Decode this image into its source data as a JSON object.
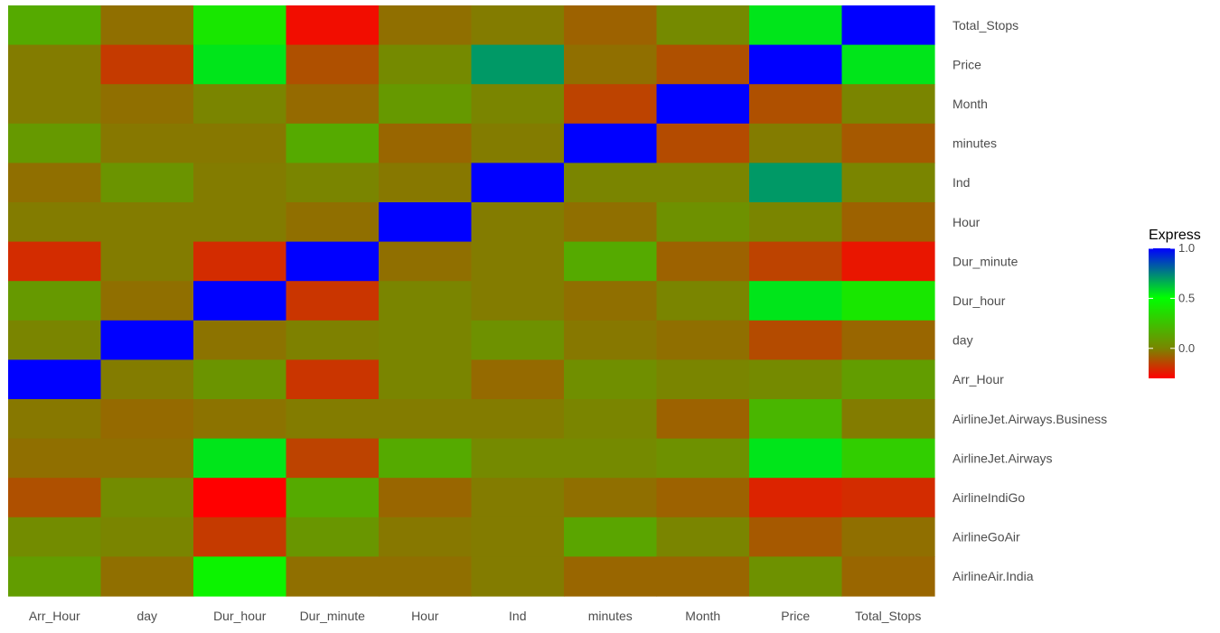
{
  "chart_data": {
    "type": "heatmap",
    "x_labels": [
      "Arr_Hour",
      "day",
      "Dur_hour",
      "Dur_minute",
      "Hour",
      "Ind",
      "minutes",
      "Month",
      "Price",
      "Total_Stops"
    ],
    "y_labels_top_to_bottom": [
      "Total_Stops",
      "Price",
      "Month",
      "minutes",
      "Ind",
      "Hour",
      "Dur_minute",
      "Dur_hour",
      "day",
      "Arr_Hour",
      "AirlineJet.Airways.Business",
      "AirlineJet.Airways",
      "AirlineIndiGo",
      "AirlineGoAir",
      "AirlineAir.India"
    ],
    "values": [
      [
        0.15,
        -0.05,
        0.4,
        -0.27,
        -0.05,
        -0.02,
        -0.08,
        0.02,
        0.55,
        1.0
      ],
      [
        -0.02,
        -0.17,
        0.55,
        -0.12,
        0.02,
        0.7,
        -0.05,
        -0.12,
        1.0,
        0.55
      ],
      [
        -0.02,
        -0.05,
        0.0,
        -0.06,
        0.08,
        0.0,
        -0.15,
        1.0,
        -0.12,
        0.0
      ],
      [
        0.08,
        -0.03,
        -0.03,
        0.15,
        -0.07,
        -0.02,
        1.0,
        -0.13,
        -0.02,
        -0.1
      ],
      [
        -0.05,
        0.06,
        -0.02,
        0.0,
        -0.03,
        1.0,
        0.0,
        0.0,
        0.7,
        0.0
      ],
      [
        -0.02,
        -0.02,
        -0.02,
        -0.05,
        1.0,
        -0.02,
        -0.05,
        0.05,
        0.0,
        -0.08
      ],
      [
        -0.2,
        -0.02,
        -0.2,
        1.0,
        -0.05,
        -0.02,
        0.15,
        -0.08,
        -0.15,
        -0.25
      ],
      [
        0.08,
        -0.05,
        1.0,
        -0.18,
        0.0,
        -0.02,
        -0.05,
        0.0,
        0.55,
        0.4
      ],
      [
        0.0,
        1.0,
        -0.04,
        -0.01,
        0.0,
        0.05,
        -0.03,
        -0.05,
        -0.13,
        -0.07
      ],
      [
        1.0,
        -0.02,
        0.06,
        -0.18,
        0.0,
        -0.06,
        0.04,
        0.0,
        0.02,
        0.1
      ],
      [
        -0.03,
        -0.06,
        -0.04,
        -0.02,
        -0.02,
        -0.02,
        0.0,
        -0.08,
        0.2,
        -0.02
      ],
      [
        -0.05,
        -0.05,
        0.55,
        -0.15,
        0.15,
        0.02,
        0.02,
        0.05,
        0.55,
        0.3
      ],
      [
        -0.12,
        0.03,
        -0.3,
        0.15,
        -0.07,
        -0.02,
        -0.05,
        -0.08,
        -0.22,
        -0.2
      ],
      [
        0.03,
        0.0,
        -0.17,
        0.07,
        -0.03,
        -0.02,
        0.13,
        0.0,
        -0.1,
        -0.05
      ],
      [
        0.1,
        -0.05,
        0.45,
        -0.05,
        -0.05,
        -0.02,
        -0.07,
        -0.07,
        0.05,
        -0.07
      ]
    ],
    "legend_title": "Express",
    "legend_ticks": [
      1.0,
      0.5,
      0.0
    ],
    "legend_tick_labels": [
      "1.0",
      "0.5",
      "0.0"
    ],
    "color_range": [
      -0.3,
      1.0
    ],
    "colors": {
      "low": "#ff0000",
      "mid": "#7a8500",
      "high_mid": "#00ff00",
      "high": "#0000ff",
      "background": "#ffffff",
      "label_text": "#4d4d4d",
      "legend_title_text": "#000000"
    },
    "legend_placement": "right",
    "grid": false
  }
}
